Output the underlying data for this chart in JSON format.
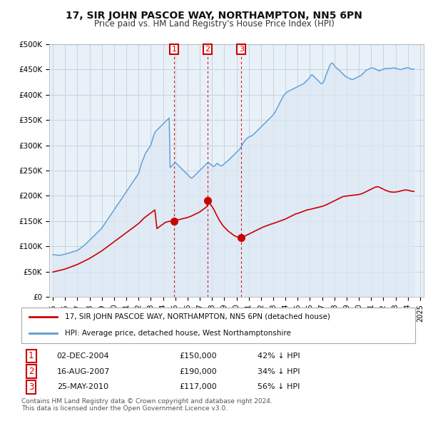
{
  "title": "17, SIR JOHN PASCOE WAY, NORTHAMPTON, NN5 6PN",
  "subtitle": "Price paid vs. HM Land Registry's House Price Index (HPI)",
  "footer_line1": "Contains HM Land Registry data © Crown copyright and database right 2024.",
  "footer_line2": "This data is licensed under the Open Government Licence v3.0.",
  "legend_red": "17, SIR JOHN PASCOE WAY, NORTHAMPTON, NN5 6PN (detached house)",
  "legend_blue": "HPI: Average price, detached house, West Northamptonshire",
  "transactions": [
    {
      "label": "1",
      "date": "02-DEC-2004",
      "price": "£150,000",
      "pct": "42% ↓ HPI",
      "x_year": 2004.92
    },
    {
      "label": "2",
      "date": "16-AUG-2007",
      "price": "£190,000",
      "pct": "34% ↓ HPI",
      "x_year": 2007.62
    },
    {
      "label": "3",
      "date": "25-MAY-2010",
      "price": "£117,000",
      "pct": "56% ↓ HPI",
      "x_year": 2010.4
    }
  ],
  "hpi_x": [
    1995.0,
    1995.08,
    1995.17,
    1995.25,
    1995.33,
    1995.42,
    1995.5,
    1995.58,
    1995.67,
    1995.75,
    1995.83,
    1995.92,
    1996.0,
    1996.08,
    1996.17,
    1996.25,
    1996.33,
    1996.42,
    1996.5,
    1996.58,
    1996.67,
    1996.75,
    1996.83,
    1996.92,
    1997.0,
    1997.08,
    1997.17,
    1997.25,
    1997.33,
    1997.42,
    1997.5,
    1997.58,
    1997.67,
    1997.75,
    1997.83,
    1997.92,
    1998.0,
    1998.08,
    1998.17,
    1998.25,
    1998.33,
    1998.42,
    1998.5,
    1998.58,
    1998.67,
    1998.75,
    1998.83,
    1998.92,
    1999.0,
    1999.08,
    1999.17,
    1999.25,
    1999.33,
    1999.42,
    1999.5,
    1999.58,
    1999.67,
    1999.75,
    1999.83,
    1999.92,
    2000.0,
    2000.08,
    2000.17,
    2000.25,
    2000.33,
    2000.42,
    2000.5,
    2000.58,
    2000.67,
    2000.75,
    2000.83,
    2000.92,
    2001.0,
    2001.08,
    2001.17,
    2001.25,
    2001.33,
    2001.42,
    2001.5,
    2001.58,
    2001.67,
    2001.75,
    2001.83,
    2001.92,
    2002.0,
    2002.08,
    2002.17,
    2002.25,
    2002.33,
    2002.42,
    2002.5,
    2002.58,
    2002.67,
    2002.75,
    2002.83,
    2002.92,
    2003.0,
    2003.08,
    2003.17,
    2003.25,
    2003.33,
    2003.42,
    2003.5,
    2003.58,
    2003.67,
    2003.75,
    2003.83,
    2003.92,
    2004.0,
    2004.08,
    2004.17,
    2004.25,
    2004.33,
    2004.42,
    2004.5,
    2004.58,
    2004.67,
    2004.75,
    2004.83,
    2004.92,
    2005.0,
    2005.08,
    2005.17,
    2005.25,
    2005.33,
    2005.42,
    2005.5,
    2005.58,
    2005.67,
    2005.75,
    2005.83,
    2005.92,
    2006.0,
    2006.08,
    2006.17,
    2006.25,
    2006.33,
    2006.42,
    2006.5,
    2006.58,
    2006.67,
    2006.75,
    2006.83,
    2006.92,
    2007.0,
    2007.08,
    2007.17,
    2007.25,
    2007.33,
    2007.42,
    2007.5,
    2007.58,
    2007.67,
    2007.75,
    2007.83,
    2007.92,
    2008.0,
    2008.08,
    2008.17,
    2008.25,
    2008.33,
    2008.42,
    2008.5,
    2008.58,
    2008.67,
    2008.75,
    2008.83,
    2008.92,
    2009.0,
    2009.08,
    2009.17,
    2009.25,
    2009.33,
    2009.42,
    2009.5,
    2009.58,
    2009.67,
    2009.75,
    2009.83,
    2009.92,
    2010.0,
    2010.08,
    2010.17,
    2010.25,
    2010.33,
    2010.42,
    2010.5,
    2010.58,
    2010.67,
    2010.75,
    2010.83,
    2010.92,
    2011.0,
    2011.08,
    2011.17,
    2011.25,
    2011.33,
    2011.42,
    2011.5,
    2011.58,
    2011.67,
    2011.75,
    2011.83,
    2011.92,
    2012.0,
    2012.08,
    2012.17,
    2012.25,
    2012.33,
    2012.42,
    2012.5,
    2012.58,
    2012.67,
    2012.75,
    2012.83,
    2012.92,
    2013.0,
    2013.08,
    2013.17,
    2013.25,
    2013.33,
    2013.42,
    2013.5,
    2013.58,
    2013.67,
    2013.75,
    2013.83,
    2013.92,
    2014.0,
    2014.08,
    2014.17,
    2014.25,
    2014.33,
    2014.42,
    2014.5,
    2014.58,
    2014.67,
    2014.75,
    2014.83,
    2014.92,
    2015.0,
    2015.08,
    2015.17,
    2015.25,
    2015.33,
    2015.42,
    2015.5,
    2015.58,
    2015.67,
    2015.75,
    2015.83,
    2015.92,
    2016.0,
    2016.08,
    2016.17,
    2016.25,
    2016.33,
    2016.42,
    2016.5,
    2016.58,
    2016.67,
    2016.75,
    2016.83,
    2016.92,
    2017.0,
    2017.08,
    2017.17,
    2017.25,
    2017.33,
    2017.42,
    2017.5,
    2017.58,
    2017.67,
    2017.75,
    2017.83,
    2017.92,
    2018.0,
    2018.08,
    2018.17,
    2018.25,
    2018.33,
    2018.42,
    2018.5,
    2018.58,
    2018.67,
    2018.75,
    2018.83,
    2018.92,
    2019.0,
    2019.08,
    2019.17,
    2019.25,
    2019.33,
    2019.42,
    2019.5,
    2019.58,
    2019.67,
    2019.75,
    2019.83,
    2019.92,
    2020.0,
    2020.08,
    2020.17,
    2020.25,
    2020.33,
    2020.42,
    2020.5,
    2020.58,
    2020.67,
    2020.75,
    2020.83,
    2020.92,
    2021.0,
    2021.08,
    2021.17,
    2021.25,
    2021.33,
    2021.42,
    2021.5,
    2021.58,
    2021.67,
    2021.75,
    2021.83,
    2021.92,
    2022.0,
    2022.08,
    2022.17,
    2022.25,
    2022.33,
    2022.42,
    2022.5,
    2022.58,
    2022.67,
    2022.75,
    2022.83,
    2022.92,
    2023.0,
    2023.08,
    2023.17,
    2023.25,
    2023.33,
    2023.42,
    2023.5,
    2023.58,
    2023.67,
    2023.75,
    2023.83,
    2023.92,
    2024.0,
    2024.08,
    2024.17,
    2024.25,
    2024.33,
    2024.5
  ],
  "hpi_y": [
    83000,
    83500,
    83200,
    82800,
    82500,
    82200,
    82000,
    82300,
    82600,
    83000,
    83500,
    84000,
    84500,
    85000,
    85500,
    86000,
    86800,
    87500,
    88200,
    88800,
    89500,
    90000,
    90500,
    91000,
    92000,
    93000,
    94500,
    96000,
    97500,
    99000,
    100500,
    102000,
    104000,
    106000,
    108000,
    110000,
    112000,
    114000,
    116000,
    118000,
    120000,
    122000,
    124000,
    126000,
    128000,
    130000,
    132000,
    134000,
    136000,
    139000,
    142000,
    145000,
    148000,
    151000,
    154000,
    157000,
    160000,
    163000,
    166000,
    169000,
    172000,
    175000,
    178000,
    181000,
    184000,
    187000,
    190000,
    193000,
    196000,
    199000,
    202000,
    205000,
    208000,
    211000,
    214000,
    217000,
    220000,
    223000,
    226000,
    229000,
    232000,
    235000,
    238000,
    241000,
    244000,
    251000,
    258000,
    265000,
    270000,
    275000,
    280000,
    285000,
    288000,
    291000,
    294000,
    297000,
    300000,
    307000,
    314000,
    320000,
    325000,
    328000,
    330000,
    332000,
    334000,
    336000,
    338000,
    340000,
    342000,
    344000,
    346000,
    348000,
    350000,
    352000,
    354000,
    256000,
    258000,
    260000,
    262000,
    264000,
    266000,
    264000,
    262000,
    260000,
    258000,
    256000,
    254000,
    252000,
    250000,
    248000,
    246000,
    244000,
    242000,
    240000,
    238000,
    236000,
    235000,
    236000,
    238000,
    240000,
    242000,
    244000,
    246000,
    248000,
    250000,
    252000,
    254000,
    256000,
    258000,
    260000,
    262000,
    264000,
    266000,
    265000,
    263000,
    262000,
    260000,
    258000,
    258000,
    260000,
    262000,
    264000,
    263000,
    261000,
    260000,
    259000,
    260000,
    261000,
    263000,
    265000,
    267000,
    268000,
    270000,
    272000,
    274000,
    276000,
    278000,
    280000,
    282000,
    284000,
    286000,
    288000,
    290000,
    292000,
    295000,
    298000,
    302000,
    306000,
    309000,
    311000,
    313000,
    315000,
    316000,
    317000,
    318000,
    319000,
    320000,
    322000,
    324000,
    326000,
    328000,
    330000,
    332000,
    334000,
    336000,
    338000,
    340000,
    342000,
    344000,
    346000,
    348000,
    350000,
    352000,
    354000,
    356000,
    358000,
    360000,
    363000,
    366000,
    370000,
    374000,
    378000,
    382000,
    386000,
    390000,
    394000,
    397000,
    400000,
    402000,
    404000,
    406000,
    407000,
    408000,
    409000,
    410000,
    411000,
    412000,
    413000,
    414000,
    415000,
    416000,
    417000,
    418000,
    419000,
    420000,
    421000,
    422000,
    424000,
    426000,
    428000,
    430000,
    432000,
    435000,
    438000,
    440000,
    438000,
    436000,
    434000,
    432000,
    430000,
    428000,
    426000,
    424000,
    422000,
    422000,
    424000,
    428000,
    434000,
    440000,
    445000,
    450000,
    455000,
    460000,
    462000,
    463000,
    460000,
    458000,
    455000,
    453000,
    451000,
    450000,
    448000,
    446000,
    444000,
    442000,
    440000,
    438000,
    436000,
    435000,
    434000,
    433000,
    432000,
    431000,
    430000,
    430000,
    431000,
    432000,
    433000,
    434000,
    435000,
    436000,
    437000,
    438000,
    440000,
    442000,
    444000,
    446000,
    448000,
    449000,
    450000,
    451000,
    452000,
    453000,
    453000,
    453000,
    452000,
    451000,
    450000,
    449000,
    448000,
    447000,
    448000,
    449000,
    450000,
    450000,
    451000,
    452000,
    452000,
    452000,
    452000,
    452000,
    452000,
    452000,
    453000,
    453000,
    453000,
    452000,
    452000,
    451000,
    451000,
    450000,
    450000,
    450000,
    451000,
    452000,
    452000,
    453000,
    453000,
    453000,
    453000,
    452000,
    451000,
    450000,
    451000
  ],
  "price_x": [
    1995.0,
    1995.17,
    1995.33,
    1995.5,
    1995.67,
    1995.83,
    1996.0,
    1996.17,
    1996.33,
    1996.5,
    1996.67,
    1996.83,
    1997.0,
    1997.17,
    1997.33,
    1997.5,
    1997.67,
    1997.83,
    1998.0,
    1998.17,
    1998.33,
    1998.5,
    1998.67,
    1998.83,
    1999.0,
    1999.17,
    1999.33,
    1999.5,
    1999.67,
    1999.83,
    2000.0,
    2000.17,
    2000.33,
    2000.5,
    2000.67,
    2000.83,
    2001.0,
    2001.17,
    2001.33,
    2001.5,
    2001.67,
    2001.83,
    2002.0,
    2002.17,
    2002.33,
    2002.5,
    2002.67,
    2002.83,
    2003.0,
    2003.17,
    2003.33,
    2003.5,
    2003.67,
    2003.83,
    2004.0,
    2004.17,
    2004.5,
    2004.75,
    2004.91,
    2004.92,
    2005.0,
    2005.17,
    2005.33,
    2005.5,
    2005.67,
    2005.83,
    2006.0,
    2006.17,
    2006.33,
    2006.5,
    2006.67,
    2006.83,
    2007.0,
    2007.17,
    2007.33,
    2007.5,
    2007.61,
    2007.62,
    2007.67,
    2007.83,
    2008.0,
    2008.17,
    2008.33,
    2008.5,
    2008.67,
    2008.83,
    2009.0,
    2009.17,
    2009.33,
    2009.5,
    2009.67,
    2009.83,
    2010.0,
    2010.17,
    2010.33,
    2010.39,
    2010.4,
    2010.5,
    2010.67,
    2010.83,
    2011.0,
    2011.17,
    2011.33,
    2011.5,
    2011.67,
    2011.83,
    2012.0,
    2012.17,
    2012.33,
    2012.5,
    2012.67,
    2012.83,
    2013.0,
    2013.17,
    2013.33,
    2013.5,
    2013.67,
    2013.83,
    2014.0,
    2014.17,
    2014.33,
    2014.5,
    2014.67,
    2014.83,
    2015.0,
    2015.17,
    2015.33,
    2015.5,
    2015.67,
    2015.83,
    2016.0,
    2016.17,
    2016.33,
    2016.5,
    2016.67,
    2016.83,
    2017.0,
    2017.17,
    2017.33,
    2017.5,
    2017.67,
    2017.83,
    2018.0,
    2018.17,
    2018.33,
    2018.5,
    2018.67,
    2018.83,
    2019.0,
    2019.17,
    2019.33,
    2019.5,
    2019.67,
    2019.83,
    2020.0,
    2020.17,
    2020.33,
    2020.5,
    2020.67,
    2020.83,
    2021.0,
    2021.17,
    2021.33,
    2021.5,
    2021.67,
    2021.83,
    2022.0,
    2022.17,
    2022.33,
    2022.5,
    2022.67,
    2022.83,
    2023.0,
    2023.17,
    2023.33,
    2023.5,
    2023.67,
    2023.83,
    2024.0,
    2024.17,
    2024.33,
    2024.5
  ],
  "price_y": [
    49000,
    50000,
    51000,
    52000,
    53000,
    54000,
    55000,
    56500,
    58000,
    59500,
    61000,
    62500,
    64000,
    66000,
    68000,
    70000,
    72000,
    74000,
    76000,
    78500,
    81000,
    83500,
    86000,
    88500,
    91000,
    94000,
    97000,
    100000,
    103000,
    106000,
    109000,
    112000,
    115000,
    118000,
    121000,
    124000,
    127000,
    130000,
    133000,
    136000,
    139000,
    142000,
    145000,
    149000,
    153000,
    157000,
    160000,
    163000,
    166000,
    169000,
    172000,
    135000,
    138000,
    141000,
    144000,
    147000,
    149500,
    149800,
    149900,
    150000,
    151000,
    152000,
    153000,
    154000,
    155000,
    156000,
    157000,
    158500,
    160000,
    162000,
    164000,
    166000,
    168000,
    171000,
    174000,
    177000,
    179500,
    190000,
    188000,
    184000,
    179000,
    172000,
    164000,
    156000,
    149000,
    143000,
    138000,
    134000,
    130000,
    127000,
    124000,
    121000,
    119000,
    118000,
    117500,
    117100,
    117000,
    118000,
    120000,
    122000,
    124000,
    126000,
    128000,
    130000,
    132000,
    134000,
    136000,
    138000,
    139500,
    141000,
    142500,
    144000,
    145000,
    146500,
    148000,
    149500,
    151000,
    152500,
    154000,
    156000,
    158000,
    160000,
    162000,
    164000,
    165000,
    166500,
    168000,
    169500,
    171000,
    172500,
    173000,
    174000,
    175000,
    176000,
    177000,
    178000,
    179000,
    180500,
    182000,
    184000,
    186000,
    188000,
    190000,
    192000,
    194000,
    196000,
    198000,
    199000,
    199500,
    200000,
    200500,
    201000,
    201500,
    202000,
    202500,
    203500,
    205000,
    207000,
    209000,
    211000,
    213000,
    215000,
    217000,
    218000,
    217000,
    215000,
    213000,
    211000,
    209500,
    208000,
    207500,
    207000,
    207500,
    208000,
    209000,
    210000,
    211000,
    211500,
    211000,
    210000,
    209000,
    208500
  ],
  "ylim": [
    0,
    500000
  ],
  "xlim": [
    1994.7,
    2025.3
  ],
  "background_color": "#ffffff",
  "plot_bg_color": "#e8f0f8",
  "grid_color": "#c8d4e0",
  "red_color": "#cc0000",
  "blue_color": "#5b9bd5",
  "blue_fill_color": "#dce8f5",
  "dashed_color": "#cc0000",
  "marker_box_color": "#cc0000",
  "xticks": [
    1995,
    1996,
    1997,
    1998,
    1999,
    2000,
    2001,
    2002,
    2003,
    2004,
    2005,
    2006,
    2007,
    2008,
    2009,
    2010,
    2011,
    2012,
    2013,
    2014,
    2015,
    2016,
    2017,
    2018,
    2019,
    2020,
    2021,
    2022,
    2023,
    2024,
    2025
  ],
  "yticks": [
    0,
    50000,
    100000,
    150000,
    200000,
    250000,
    300000,
    350000,
    400000,
    450000,
    500000
  ]
}
